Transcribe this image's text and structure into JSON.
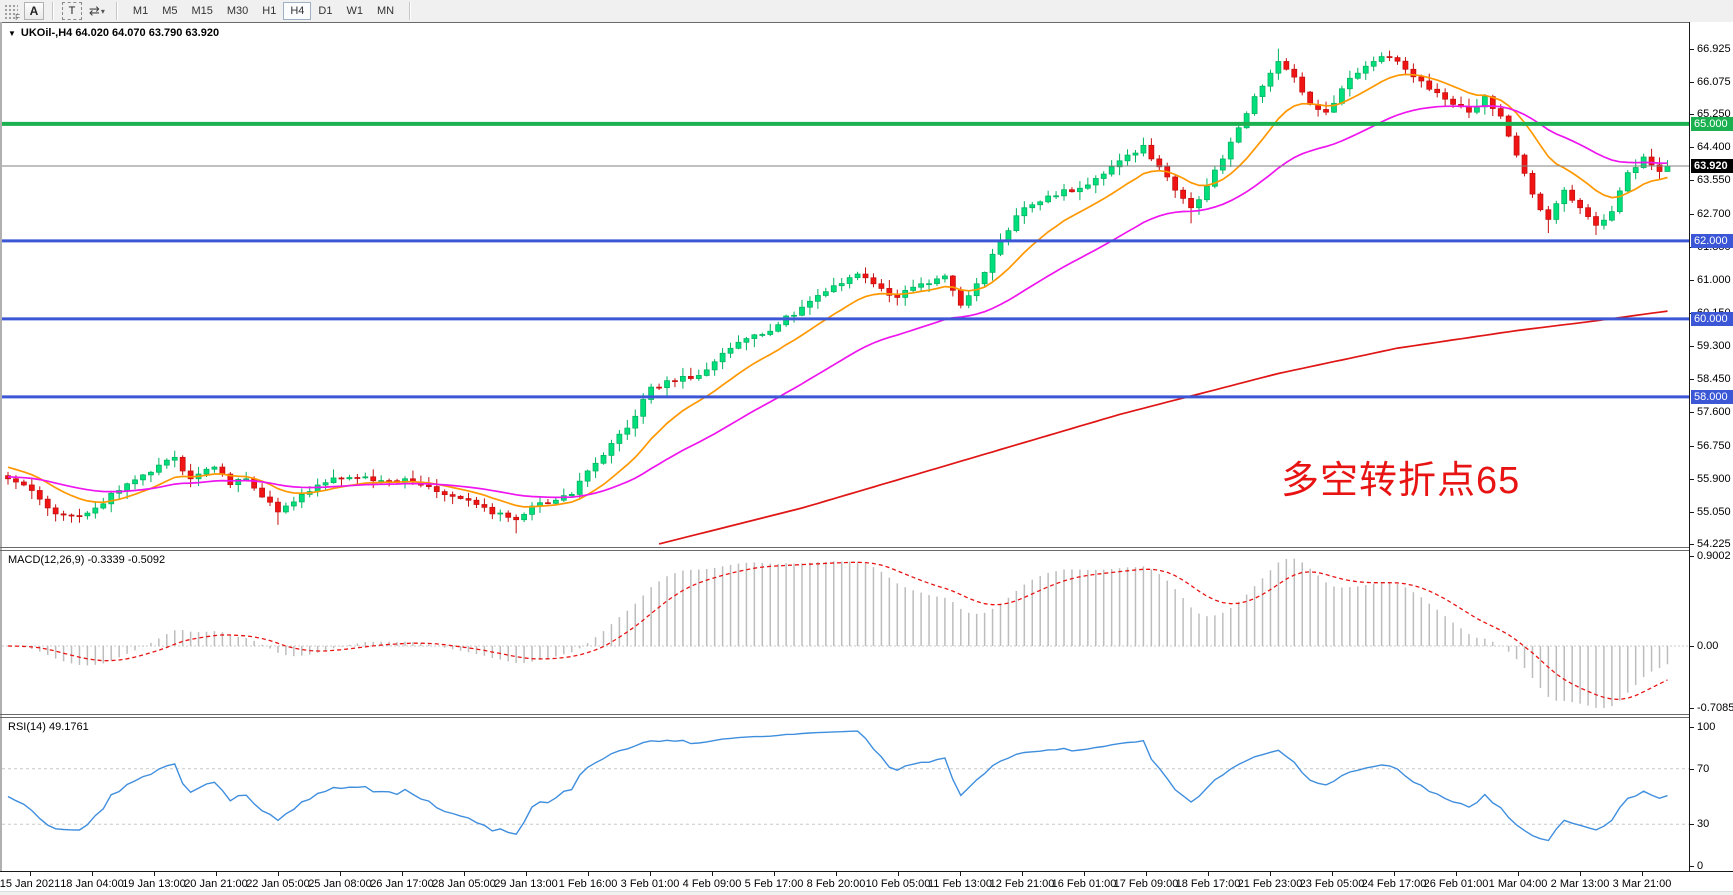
{
  "toolbar": {
    "grip_label": "F",
    "annotate_button": "A",
    "text_button": "T",
    "cursor_tool_icon": "⇄",
    "dropdown_caret": "▾",
    "timeframes": [
      "M1",
      "M5",
      "M15",
      "M30",
      "H1",
      "H4",
      "D1",
      "W1",
      "MN"
    ],
    "active_timeframe": "H4"
  },
  "header": {
    "caret": "▼",
    "title": "UKOil-,H4  64.020 64.070 63.790 63.920"
  },
  "annotation": {
    "text": "多空转折点65",
    "color": "#e81414"
  },
  "macd_panel": {
    "label": "MACD(12,26,9) -0.3339 -0.5092",
    "axis_labels": [
      "0.9002",
      "0.00",
      "-0.7085"
    ]
  },
  "rsi_panel": {
    "label": "RSI(14) 49.1761",
    "axis_labels": [
      "100",
      "70",
      "30",
      "0"
    ]
  },
  "chart_data": {
    "type": "candlestick",
    "symbol": "UKOil-",
    "timeframe": "H4",
    "current_bar": {
      "open": 64.02,
      "high": 64.07,
      "low": 63.79,
      "close": 63.92
    },
    "price_axis_ticks": [
      66.925,
      66.075,
      65.25,
      64.4,
      63.55,
      62.7,
      61.85,
      61.0,
      60.15,
      59.3,
      58.45,
      57.6,
      56.75,
      55.9,
      55.05,
      54.225
    ],
    "price_tick_labels": [
      "66.925",
      "66.075",
      "65.250",
      "64.400",
      "63.550",
      "62.700",
      "61.850",
      "61.000",
      "60.150",
      "59.300",
      "58.450",
      "57.600",
      "56.750",
      "55.900",
      "55.050",
      "54.225"
    ],
    "horizontal_levels": [
      {
        "price": 65.0,
        "label": "65.000",
        "color": "#1cb150",
        "width": 4
      },
      {
        "price": 62.0,
        "label": "62.000",
        "color": "#3c57d6",
        "width": 3
      },
      {
        "price": 60.0,
        "label": "60.000",
        "color": "#3c57d6",
        "width": 3
      },
      {
        "price": 58.0,
        "label": "58.000",
        "color": "#3c57d6",
        "width": 3
      }
    ],
    "current_price_line": {
      "price": 63.92,
      "label": "63.920",
      "line_color": "#808080",
      "badge_color": "#000000"
    },
    "bar_count": 210,
    "close_anchors": [
      [
        0,
        55.9
      ],
      [
        3,
        55.6
      ],
      [
        6,
        55.0
      ],
      [
        9,
        54.95
      ],
      [
        11,
        55.15
      ],
      [
        14,
        55.6
      ],
      [
        17,
        56.0
      ],
      [
        19,
        56.25
      ],
      [
        21,
        56.45
      ],
      [
        23,
        55.9
      ],
      [
        26,
        56.2
      ],
      [
        28,
        55.75
      ],
      [
        30,
        55.9
      ],
      [
        33,
        55.3
      ],
      [
        34,
        55.05
      ],
      [
        37,
        55.5
      ],
      [
        40,
        55.8
      ],
      [
        42,
        55.9
      ],
      [
        45,
        55.95
      ],
      [
        48,
        55.85
      ],
      [
        50,
        55.9
      ],
      [
        53,
        55.7
      ],
      [
        56,
        55.45
      ],
      [
        58,
        55.35
      ],
      [
        61,
        55.0
      ],
      [
        64,
        54.85
      ],
      [
        66,
        55.2
      ],
      [
        69,
        55.35
      ],
      [
        71,
        55.5
      ],
      [
        73,
        56.1
      ],
      [
        75,
        56.5
      ],
      [
        78,
        57.2
      ],
      [
        81,
        58.25
      ],
      [
        84,
        58.4
      ],
      [
        87,
        58.55
      ],
      [
        89,
        58.9
      ],
      [
        92,
        59.4
      ],
      [
        95,
        59.6
      ],
      [
        97,
        59.85
      ],
      [
        100,
        60.3
      ],
      [
        102,
        60.6
      ],
      [
        104,
        60.85
      ],
      [
        107,
        61.15
      ],
      [
        109,
        60.9
      ],
      [
        112,
        60.55
      ],
      [
        115,
        60.9
      ],
      [
        118,
        61.1
      ],
      [
        120,
        60.35
      ],
      [
        122,
        60.9
      ],
      [
        125,
        62.0
      ],
      [
        128,
        62.85
      ],
      [
        131,
        63.15
      ],
      [
        135,
        63.35
      ],
      [
        137,
        63.6
      ],
      [
        139,
        63.9
      ],
      [
        141,
        64.2
      ],
      [
        143,
        64.45
      ],
      [
        145,
        63.9
      ],
      [
        147,
        63.3
      ],
      [
        149,
        62.85
      ],
      [
        151,
        63.4
      ],
      [
        153,
        64.1
      ],
      [
        155,
        64.9
      ],
      [
        157,
        65.7
      ],
      [
        159,
        66.3
      ],
      [
        160,
        66.6
      ],
      [
        162,
        66.2
      ],
      [
        164,
        65.5
      ],
      [
        166,
        65.3
      ],
      [
        168,
        65.9
      ],
      [
        170,
        66.3
      ],
      [
        172,
        66.6
      ],
      [
        174,
        66.7
      ],
      [
        176,
        66.4
      ],
      [
        178,
        66.1
      ],
      [
        180,
        65.8
      ],
      [
        182,
        65.5
      ],
      [
        184,
        65.3
      ],
      [
        186,
        65.7
      ],
      [
        188,
        65.2
      ],
      [
        190,
        64.2
      ],
      [
        192,
        63.2
      ],
      [
        194,
        62.55
      ],
      [
        196,
        63.3
      ],
      [
        198,
        62.85
      ],
      [
        200,
        62.4
      ],
      [
        202,
        62.75
      ],
      [
        204,
        63.75
      ],
      [
        206,
        64.15
      ],
      [
        208,
        63.78
      ],
      [
        209,
        63.92
      ]
    ],
    "wick_overrides": {
      "21": [
        56.62,
        null
      ],
      "34": [
        null,
        54.72
      ],
      "64": [
        null,
        54.5
      ],
      "149": [
        null,
        62.45
      ],
      "160": [
        66.93,
        null
      ],
      "174": [
        66.88,
        null
      ],
      "194": [
        null,
        62.2
      ],
      "200": [
        null,
        62.15
      ],
      "209": [
        64.07,
        63.79
      ]
    },
    "candle_colors": {
      "up": "#00df7c",
      "up_edge": "#00b25e",
      "down": "#f11414",
      "down_edge": "#c40f0f"
    },
    "moving_averages": [
      {
        "name": "fast-ma",
        "method": "ema",
        "period": 12,
        "seed": 56.25,
        "color": "#ff9800"
      },
      {
        "name": "medium-ma",
        "method": "ema",
        "period": 34,
        "seed": 55.95,
        "color": "#ee15ee"
      },
      {
        "name": "slow-ma",
        "method": "anchors",
        "color": "#e01515",
        "anchors": [
          [
            82,
            54.23
          ],
          [
            100,
            55.15
          ],
          [
            120,
            56.35
          ],
          [
            140,
            57.55
          ],
          [
            160,
            58.6
          ],
          [
            175,
            59.25
          ],
          [
            190,
            59.7
          ],
          [
            200,
            59.95
          ],
          [
            209,
            60.2
          ]
        ]
      }
    ],
    "macd": {
      "fast": 12,
      "slow": 26,
      "signal": 9,
      "current_macd": -0.3339,
      "current_signal": -0.5092,
      "axis_max": 0.9002,
      "axis_zero": 0.0,
      "axis_min": -0.7085,
      "histogram_color": "#bdbdbd",
      "signal_color": "#e81414"
    },
    "rsi": {
      "period": 14,
      "current": 49.1761,
      "levels": [
        70,
        30
      ],
      "axis_max": 100,
      "axis_min": 0,
      "line_color": "#3f8ede"
    },
    "time_labels": [
      "15 Jan 2021",
      "18 Jan 04:00",
      "19 Jan 13:00",
      "20 Jan 21:00",
      "22 Jan 05:00",
      "25 Jan 08:00",
      "26 Jan 17:00",
      "28 Jan 05:00",
      "29 Jan 13:00",
      "1 Feb 16:00",
      "3 Feb 01:00",
      "4 Feb 09:00",
      "5 Feb 17:00",
      "8 Feb 20:00",
      "10 Feb 05:00",
      "11 Feb 13:00",
      "12 Feb 21:00",
      "16 Feb 01:00",
      "17 Feb 09:00",
      "18 Feb 17:00",
      "21 Feb 23:00",
      "23 Feb 05:00",
      "24 Feb 17:00",
      "26 Feb 01:00",
      "1 Mar 04:00",
      "2 Mar 13:00",
      "3 Mar 21:00"
    ]
  }
}
